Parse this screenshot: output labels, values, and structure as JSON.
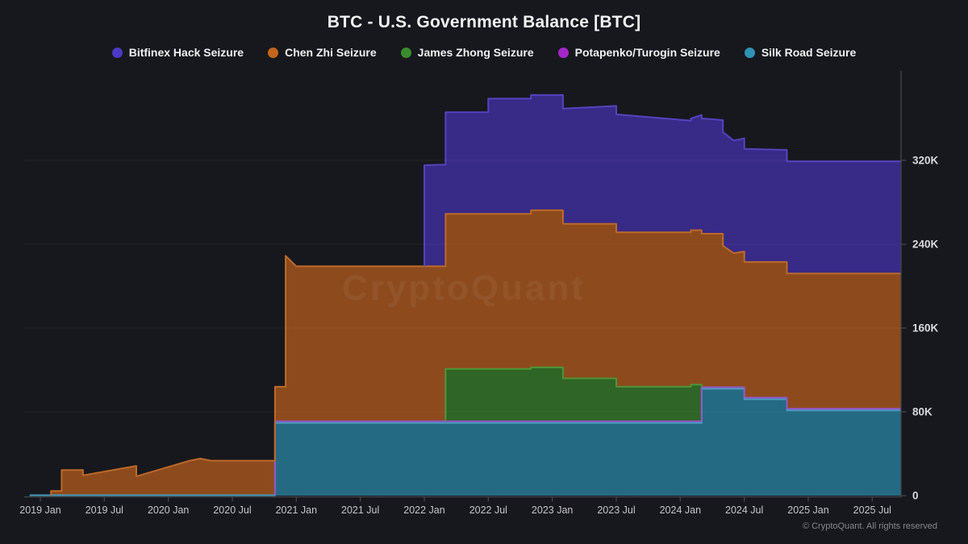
{
  "watermark": "CryptoQuant",
  "footer": {
    "copyright": "© CryptoQuant. All rights reserved"
  },
  "chart_data": {
    "type": "area",
    "stacked": true,
    "step_style": "piecewise-linear with duplicate-month vertical steps",
    "title": "BTC - U.S. Government Balance [BTC]",
    "unit": "BTC",
    "x_range": [
      "2018-12",
      "2025-10"
    ],
    "ylim": [
      0,
      396000
    ],
    "grid": true,
    "legend_position": "top",
    "y_ticks": [
      {
        "label": "0",
        "value": 0
      },
      {
        "label": "80K",
        "value": 80000
      },
      {
        "label": "160K",
        "value": 160000
      },
      {
        "label": "240K",
        "value": 240000
      },
      {
        "label": "320K",
        "value": 320000
      }
    ],
    "x_ticks": [
      {
        "label": "2019 Jan",
        "month": "2019-01"
      },
      {
        "label": "2019 Jul",
        "month": "2019-07"
      },
      {
        "label": "2020 Jan",
        "month": "2020-01"
      },
      {
        "label": "2020 Jul",
        "month": "2020-07"
      },
      {
        "label": "2021 Jan",
        "month": "2021-01"
      },
      {
        "label": "2021 Jul",
        "month": "2021-07"
      },
      {
        "label": "2022 Jan",
        "month": "2022-01"
      },
      {
        "label": "2022 Jul",
        "month": "2022-07"
      },
      {
        "label": "2023 Jan",
        "month": "2023-01"
      },
      {
        "label": "2023 Jul",
        "month": "2023-07"
      },
      {
        "label": "2024 Jan",
        "month": "2024-01"
      },
      {
        "label": "2024 Jul",
        "month": "2024-07"
      },
      {
        "label": "2025 Jan",
        "month": "2025-01"
      },
      {
        "label": "2025 Jul",
        "month": "2025-07"
      }
    ],
    "stack_order_bottom_to_top": [
      "Silk Road Seizure",
      "Potapenko/Turogin Seizure",
      "James Zhong Seizure",
      "Chen Zhi Seizure",
      "Bitfinex Hack Seizure"
    ],
    "series": [
      {
        "name": "Bitfinex Hack Seizure",
        "color": "#4c3ac4",
        "fill": "#382a87",
        "stroke": "#5443c0",
        "points": [
          [
            "2018-12",
            0
          ],
          [
            "2022-01",
            0
          ],
          [
            "2022-01",
            96500
          ],
          [
            "2022-03",
            97000
          ],
          [
            "2022-07",
            97000
          ],
          [
            "2022-07",
            110000
          ],
          [
            "2023-02",
            110000
          ],
          [
            "2023-07",
            112500
          ],
          [
            "2024-02",
            106500
          ],
          [
            "2024-03",
            110000
          ],
          [
            "2024-05",
            108500
          ],
          [
            "2024-06",
            107500
          ],
          [
            "2024-07",
            108000
          ],
          [
            "2024-11",
            107000
          ],
          [
            "2025-10",
            107000
          ]
        ]
      },
      {
        "name": "Chen Zhi Seizure",
        "color": "#c2661d",
        "fill": "#8d4b1d",
        "stroke": "#bc6a28",
        "points": [
          [
            "2018-12",
            0
          ],
          [
            "2019-02",
            0
          ],
          [
            "2019-02",
            4000
          ],
          [
            "2019-03",
            4000
          ],
          [
            "2019-03",
            24000
          ],
          [
            "2019-05",
            24000
          ],
          [
            "2019-05",
            19000
          ],
          [
            "2019-10",
            28000
          ],
          [
            "2019-10",
            18000
          ],
          [
            "2020-03",
            33000
          ],
          [
            "2020-04",
            35000
          ],
          [
            "2020-05",
            33000
          ],
          [
            "2020-11",
            33000
          ],
          [
            "2020-12",
            33000
          ],
          [
            "2020-12",
            158000
          ],
          [
            "2021-01",
            148000
          ],
          [
            "2022-11",
            148000
          ],
          [
            "2022-11",
            150000
          ],
          [
            "2023-02",
            150000
          ],
          [
            "2023-02",
            147500
          ],
          [
            "2024-03",
            147500
          ],
          [
            "2024-03",
            146500
          ],
          [
            "2024-05",
            146500
          ],
          [
            "2024-05",
            135000
          ],
          [
            "2024-06",
            128000
          ],
          [
            "2024-07",
            129500
          ],
          [
            "2024-11",
            129500
          ],
          [
            "2024-11",
            129000
          ],
          [
            "2025-10",
            129000
          ]
        ]
      },
      {
        "name": "James Zhong Seizure",
        "color": "#3a8c2e",
        "fill": "#2f6527",
        "stroke": "#4e9637",
        "points": [
          [
            "2018-12",
            0
          ],
          [
            "2022-03",
            0
          ],
          [
            "2022-03",
            50000
          ],
          [
            "2022-11",
            50000
          ],
          [
            "2022-11",
            51500
          ],
          [
            "2023-02",
            51500
          ],
          [
            "2023-02",
            41000
          ],
          [
            "2023-07",
            41000
          ],
          [
            "2023-07",
            33000
          ],
          [
            "2024-02",
            33000
          ],
          [
            "2024-02",
            35000
          ],
          [
            "2024-03",
            35000
          ],
          [
            "2024-03",
            0
          ],
          [
            "2025-10",
            0
          ]
        ]
      },
      {
        "name": "Potapenko/Turogin Seizure",
        "color": "#a428c8",
        "fill": "#6b1d85",
        "stroke": "#9357c9",
        "points": [
          [
            "2018-12",
            0
          ],
          [
            "2020-11",
            0
          ],
          [
            "2020-11",
            1500
          ],
          [
            "2025-10",
            1500
          ]
        ]
      },
      {
        "name": "Silk Road Seizure",
        "color": "#2f93b5",
        "fill": "#256a83",
        "stroke": "#4a9dc0",
        "points": [
          [
            "2018-12",
            400
          ],
          [
            "2020-11",
            400
          ],
          [
            "2020-11",
            69400
          ],
          [
            "2024-03",
            69400
          ],
          [
            "2024-03",
            102000
          ],
          [
            "2024-07",
            102000
          ],
          [
            "2024-07",
            92000
          ],
          [
            "2024-11",
            92000
          ],
          [
            "2024-11",
            81500
          ],
          [
            "2025-10",
            81500
          ]
        ]
      }
    ]
  }
}
